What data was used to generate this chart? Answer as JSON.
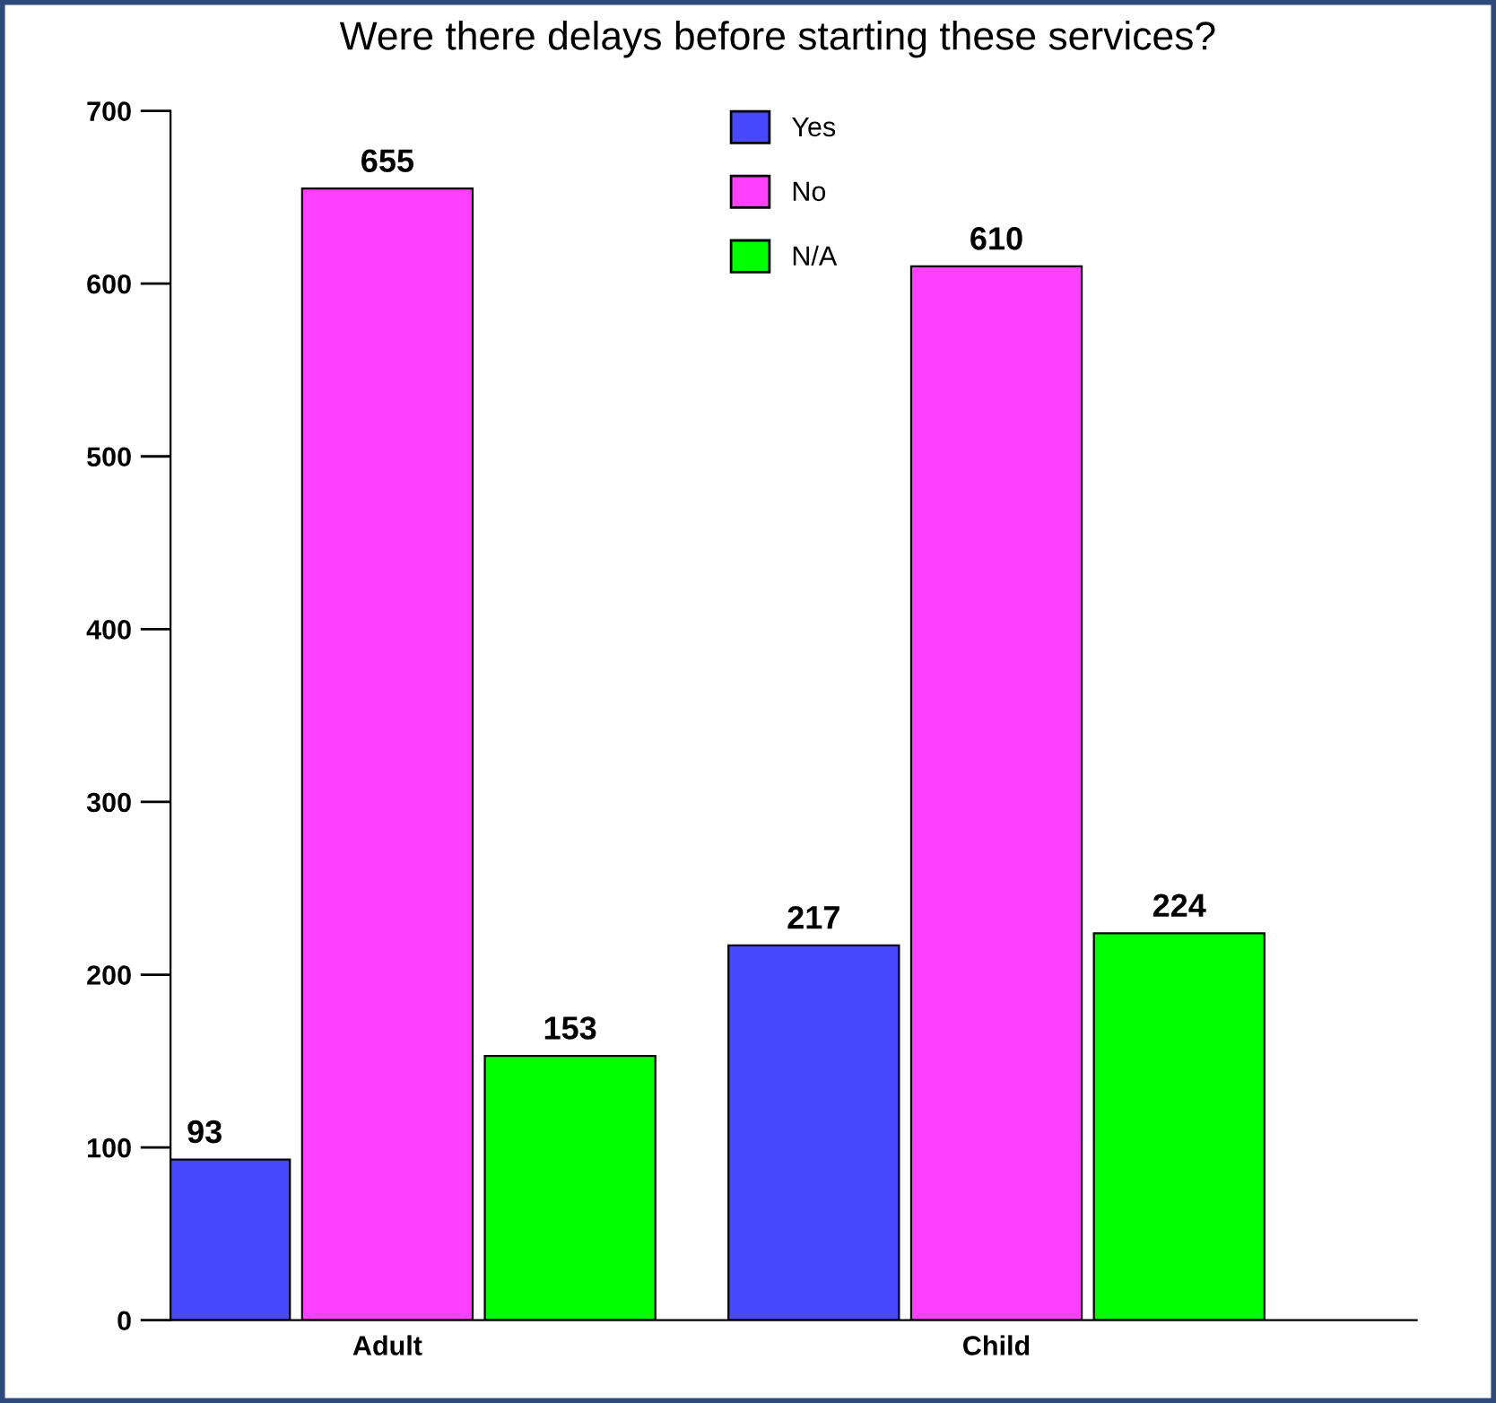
{
  "chart_data": {
    "type": "bar",
    "title": "Were there delays before starting these services?",
    "categories": [
      "Adult",
      "Child"
    ],
    "series": [
      {
        "name": "Yes",
        "color": "#4848ff",
        "values": [
          93,
          217
        ]
      },
      {
        "name": "No",
        "color": "#ff40ff",
        "values": [
          655,
          610
        ]
      },
      {
        "name": "N/A",
        "color": "#00ff00",
        "values": [
          153,
          224
        ]
      }
    ],
    "ylim": [
      0,
      700
    ],
    "yticks": [
      0,
      100,
      200,
      300,
      400,
      500,
      600,
      700
    ],
    "data_labels": true,
    "legend": "top",
    "grid": false
  }
}
